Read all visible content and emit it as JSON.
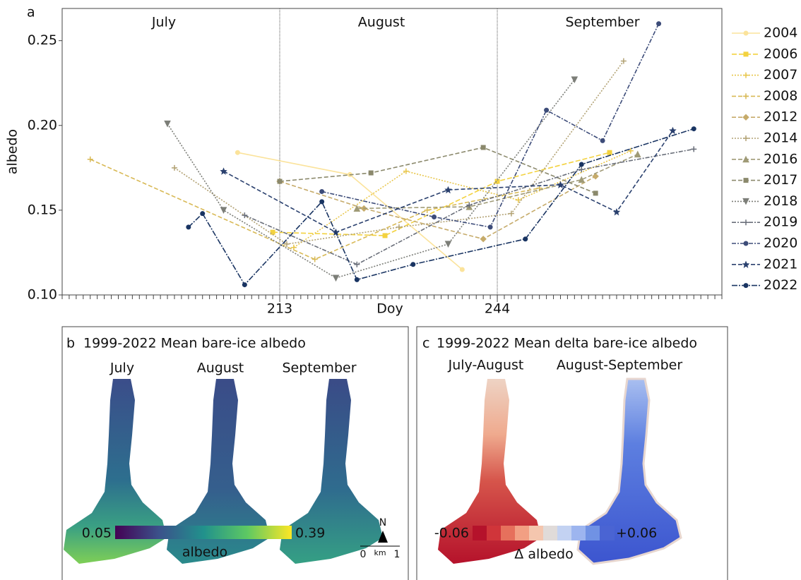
{
  "chart_data": {
    "type": "line",
    "panel_label": "a",
    "xlabel": "Doy",
    "ylabel": "albedo",
    "months": [
      "July",
      "August",
      "September"
    ],
    "xlim": [
      182,
      276
    ],
    "xticks": [
      213,
      244
    ],
    "month_lines": true,
    "ylim": [
      0.1,
      0.269
    ],
    "yticks": [
      {
        "value": 0.1,
        "label": "0.10"
      },
      0.15,
      {
        "value": 0.2,
        "label": "0.20"
      },
      0.25
    ],
    "legend": "right",
    "series": [
      {
        "name": "2004",
        "color": "#fbe39b",
        "dash": "",
        "marker": "circle",
        "x": [
          207,
          223,
          239
        ],
        "values": [
          0.184,
          0.171,
          0.115
        ]
      },
      {
        "name": "2006",
        "color": "#f3d23f",
        "dash": "7 3",
        "marker": "square",
        "x": [
          212,
          228,
          244,
          260
        ],
        "values": [
          0.137,
          0.135,
          0.167,
          0.184
        ]
      },
      {
        "name": "2007",
        "color": "#e8c64a",
        "dash": "2 2",
        "marker": "plus",
        "x": [
          215,
          231,
          247,
          263
        ],
        "values": [
          0.128,
          0.173,
          0.156,
          0.185
        ]
      },
      {
        "name": "2008",
        "color": "#d8b955",
        "dash": "6 3",
        "marker": "plus",
        "x": [
          186,
          218,
          234,
          250
        ],
        "values": [
          0.18,
          0.121,
          0.15,
          0.163
        ]
      },
      {
        "name": "2012",
        "color": "#c6ab6a",
        "dash": "6 3",
        "marker": "diamond",
        "x": [
          213,
          225,
          242,
          258
        ],
        "values": [
          0.167,
          0.151,
          0.133,
          0.17
        ]
      },
      {
        "name": "2014",
        "color": "#b2a274",
        "dash": "2 2",
        "marker": "plus",
        "x": [
          198,
          214,
          230,
          246,
          262
        ],
        "values": [
          0.175,
          0.13,
          0.14,
          0.148,
          0.238
        ]
      },
      {
        "name": "2016",
        "color": "#9f9a76",
        "dash": "6 3",
        "marker": "triangle",
        "x": [
          224,
          240,
          256,
          264
        ],
        "values": [
          0.151,
          0.152,
          0.168,
          0.183
        ]
      },
      {
        "name": "2017",
        "color": "#8b896c",
        "dash": "6 3",
        "marker": "square",
        "x": [
          213,
          226,
          242,
          258
        ],
        "values": [
          0.167,
          0.172,
          0.187,
          0.16
        ]
      },
      {
        "name": "2018",
        "color": "#7c7e78",
        "dash": "2 2",
        "marker": "triangle-down",
        "x": [
          197,
          205,
          221,
          237,
          255
        ],
        "values": [
          0.201,
          0.15,
          0.11,
          0.13,
          0.227
        ]
      },
      {
        "name": "2019",
        "color": "#696e79",
        "dash": "6 2 2 2",
        "marker": "plus",
        "x": [
          208,
          224,
          240,
          256,
          272
        ],
        "values": [
          0.147,
          0.118,
          0.153,
          0.174,
          0.186
        ]
      },
      {
        "name": "2020",
        "color": "#3d4c79",
        "dash": "6 2 2 2",
        "marker": "circle",
        "x": [
          219,
          235,
          243,
          251,
          259,
          267
        ],
        "values": [
          0.161,
          0.146,
          0.14,
          0.209,
          0.191,
          0.26
        ]
      },
      {
        "name": "2021",
        "color": "#2a406e",
        "dash": "6 3",
        "marker": "star",
        "x": [
          205,
          221,
          237,
          253,
          261,
          269
        ],
        "values": [
          0.173,
          0.137,
          0.162,
          0.165,
          0.149,
          0.197
        ]
      },
      {
        "name": "2022",
        "color": "#193462",
        "dash": "8 2 2 2",
        "marker": "pentagon",
        "x": [
          200,
          202,
          208,
          219,
          224,
          232,
          248,
          256,
          272
        ],
        "values": [
          0.14,
          0.148,
          0.106,
          0.155,
          0.109,
          0.118,
          0.133,
          0.177,
          0.198
        ]
      }
    ]
  },
  "panels": {
    "b": {
      "label": "b",
      "title": "1999-2022 Mean bare-ice albedo",
      "maps": [
        "July",
        "August",
        "September"
      ],
      "colorbar_min": 0.05,
      "colorbar_max": 0.39,
      "colorbar_label": "albedo",
      "north": "N",
      "scale_start": 0,
      "scale_unit": "km",
      "scale_end": 1
    },
    "c": {
      "label": "c",
      "title": "1999-2022 Mean delta bare-ice albedo",
      "maps": [
        "July-August",
        "August-September"
      ],
      "colorbar_min": -0.06,
      "colorbar_max": {
        "value": 0.06,
        "label": "+0.06"
      },
      "colorbar_label": "Δ albedo"
    }
  }
}
